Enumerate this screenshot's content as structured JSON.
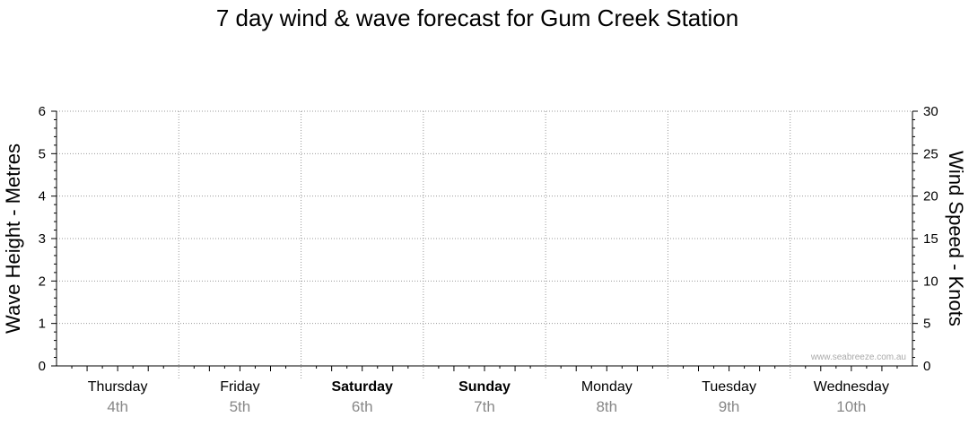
{
  "chart_data": {
    "type": "line",
    "title": "7 day wind & wave forecast for Gum Creek Station",
    "ylabel_left": "Wave Height - Metres",
    "ylabel_right": "Wind Speed - Knots",
    "ylim_left": [
      0,
      6
    ],
    "ylim_right": [
      0,
      30
    ],
    "yticks_left": [
      "0",
      "1",
      "2",
      "3",
      "4",
      "5",
      "6"
    ],
    "yticks_right": [
      "0",
      "5",
      "10",
      "15",
      "20",
      "25",
      "30"
    ],
    "days": [
      {
        "day": "Thursday",
        "date": "4th",
        "weekend": false
      },
      {
        "day": "Friday",
        "date": "5th",
        "weekend": false
      },
      {
        "day": "Saturday",
        "date": "6th",
        "weekend": true
      },
      {
        "day": "Sunday",
        "date": "7th",
        "weekend": true
      },
      {
        "day": "Monday",
        "date": "8th",
        "weekend": false
      },
      {
        "day": "Tuesday",
        "date": "9th",
        "weekend": false
      },
      {
        "day": "Wednesday",
        "date": "10th",
        "weekend": false
      }
    ],
    "series": [],
    "grid": true,
    "watermark": "www.seabreeze.com.au",
    "colors": {
      "grid": "#999999",
      "axis": "#000000",
      "date_text": "#888888",
      "watermark": "#aaaaaa"
    }
  }
}
